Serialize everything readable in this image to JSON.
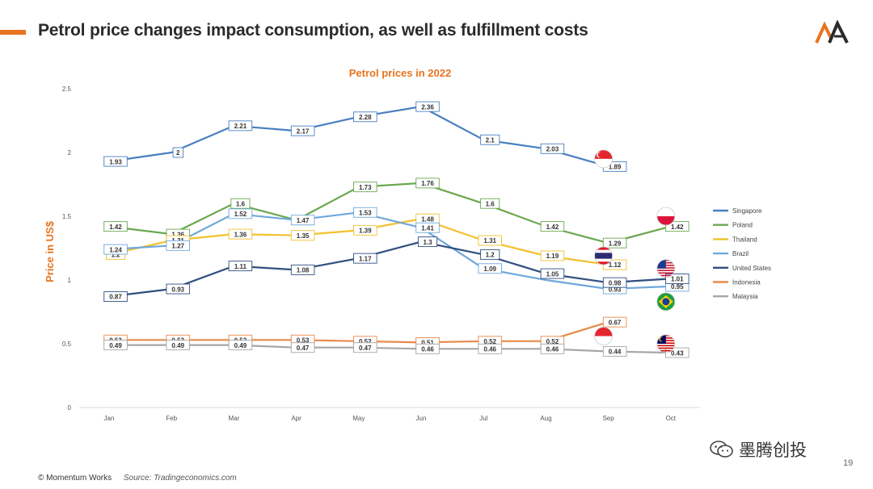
{
  "slide": {
    "title": "Petrol price changes impact consumption, as well as fulfillment costs",
    "accent_color": "#e8741e",
    "logo": "MA",
    "footer": "© Momentum Works",
    "source": "Source: Tradingeconomics.com",
    "watermark": "墨腾创投",
    "page_number": "19"
  },
  "chart_data": {
    "type": "line",
    "title": "Petrol prices in 2022",
    "title_color": "#e8741e",
    "ylabel": "Price in US$",
    "xlabel": "",
    "ylim": [
      0,
      2.5
    ],
    "yticks": [
      0,
      0.5,
      1,
      1.5,
      2,
      2.5
    ],
    "ytick_labels": [
      "0",
      "0.5",
      "1",
      "1.5",
      "2",
      "2.5"
    ],
    "categories": [
      "Jan",
      "Feb",
      "Mar",
      "Apr",
      "May",
      "Jun",
      "Jul",
      "Aug",
      "Sep",
      "Oct"
    ],
    "legend_position": "right",
    "series": [
      {
        "name": "Singapore",
        "color": "#4a7fc1",
        "flag": "singapore-flag",
        "values": [
          1.93,
          2.0,
          2.21,
          2.17,
          2.28,
          2.36,
          2.1,
          2.03,
          1.89,
          null
        ],
        "labels": [
          "1.93",
          "2",
          "2.21",
          "2.17",
          "2.28",
          "2.36",
          "2.1",
          "2.03",
          "1.89",
          null
        ]
      },
      {
        "name": "Poland",
        "color": "#6aa84f",
        "flag": "poland-flag",
        "values": [
          1.42,
          1.36,
          1.6,
          1.47,
          1.73,
          1.76,
          1.6,
          1.42,
          1.29,
          1.42
        ],
        "labels": [
          "1.42",
          "1.36",
          "1.6",
          null,
          "1.73",
          "1.76",
          "1.6",
          "1.42",
          "1.29",
          "1.42"
        ]
      },
      {
        "name": "Thailand",
        "color": "#f2c12e",
        "flag": "thailand-flag",
        "values": [
          1.2,
          1.31,
          1.36,
          1.35,
          1.39,
          1.48,
          1.31,
          1.19,
          1.12,
          null
        ],
        "labels": [
          "1.2",
          "1.31",
          "1.36",
          "1.35",
          "1.39",
          "1.48",
          "1.31",
          "1.19",
          "1.12",
          null
        ]
      },
      {
        "name": "Brazil",
        "color": "#6fa8dc",
        "flag": "brazil-flag",
        "values": [
          1.24,
          1.27,
          1.52,
          1.47,
          1.53,
          1.41,
          1.09,
          1.0,
          0.93,
          0.95
        ],
        "labels": [
          "1.24",
          "1.27",
          "1.52",
          "1.47",
          "1.53",
          "1.41",
          "1.09",
          null,
          "0.93",
          "0.95"
        ]
      },
      {
        "name": "United States",
        "color": "#2f4f7f",
        "flag": "united-states-flag",
        "values": [
          0.87,
          0.93,
          1.11,
          1.08,
          1.17,
          1.3,
          1.2,
          1.05,
          0.98,
          1.01
        ],
        "labels": [
          "0.87",
          "0.93",
          "1.11",
          "1.08",
          "1.17",
          "1.3",
          "1.2",
          "1.05",
          "0.98",
          "1.01"
        ]
      },
      {
        "name": "Indonesia",
        "color": "#e8894a",
        "flag": "indonesia-flag",
        "values": [
          0.53,
          0.53,
          0.53,
          0.53,
          0.52,
          0.51,
          0.52,
          0.52,
          0.67,
          null
        ],
        "labels": [
          "0.53",
          "0.53",
          "0.53",
          "0.53",
          "0.52",
          "0.51",
          "0.52",
          "0.52",
          "0.67",
          null
        ]
      },
      {
        "name": "Malaysia",
        "color": "#a6a6a6",
        "flag": "malaysia-flag",
        "values": [
          0.49,
          0.49,
          0.49,
          0.47,
          0.47,
          0.46,
          0.46,
          0.46,
          0.44,
          0.43
        ],
        "labels": [
          "0.49",
          "0.49",
          "0.49",
          "0.47",
          "0.47",
          "0.46",
          "0.46",
          "0.46",
          "0.44",
          "0.43"
        ]
      }
    ]
  }
}
